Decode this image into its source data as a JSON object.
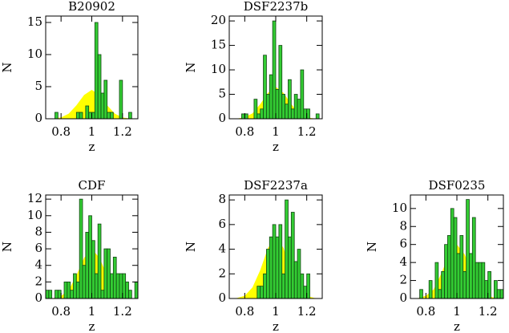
{
  "chart_data": [
    {
      "type": "histogram",
      "title": "B20902",
      "xlabel": "z",
      "ylabel": "N",
      "bins": [
        0.7,
        0.72,
        0.74,
        0.76,
        0.78,
        0.8,
        0.82,
        0.84,
        0.86,
        0.88,
        0.9,
        0.92,
        0.94,
        0.96,
        0.98,
        1.0,
        1.02,
        1.04,
        1.06,
        1.08,
        1.1,
        1.12,
        1.14,
        1.16,
        1.18,
        1.2,
        1.22,
        1.24,
        1.26,
        1.28,
        1.3
      ],
      "values": [
        0,
        0,
        0,
        1,
        0,
        0,
        0,
        0,
        0,
        0,
        1,
        1,
        0,
        2,
        1,
        1,
        15,
        10,
        4,
        6,
        1,
        1,
        0,
        0,
        6,
        0,
        0,
        1,
        0,
        0
      ],
      "color": "#33cc33",
      "overlay": {
        "color": "#ffff00",
        "x": [
          0.7,
          0.75,
          0.8,
          0.85,
          0.9,
          0.95,
          1.0,
          1.05,
          1.1,
          1.15,
          1.2,
          1.25,
          1.3
        ],
        "values": [
          0,
          0.03,
          0.2,
          0.8,
          2.1,
          3.7,
          4.5,
          3.7,
          2.1,
          0.8,
          0.2,
          0.03,
          0
        ]
      },
      "xlim": [
        0.7,
        1.3
      ],
      "xticks": [
        0.8,
        1,
        1.2
      ],
      "ylim": [
        0,
        16
      ],
      "yticks": [
        0,
        5,
        10,
        15
      ]
    },
    {
      "type": "histogram",
      "title": "DSF2237b",
      "xlabel": "z",
      "ylabel": "N",
      "bins": [
        0.7,
        0.72,
        0.74,
        0.76,
        0.78,
        0.8,
        0.82,
        0.84,
        0.86,
        0.88,
        0.9,
        0.92,
        0.94,
        0.96,
        0.98,
        1.0,
        1.02,
        1.04,
        1.06,
        1.08,
        1.1,
        1.12,
        1.14,
        1.16,
        1.18,
        1.2,
        1.22,
        1.24,
        1.26,
        1.28,
        1.3
      ],
      "values": [
        0,
        0,
        0,
        0,
        1,
        1,
        0,
        0,
        4,
        1,
        2,
        13,
        5,
        9,
        20,
        6,
        15,
        5,
        3,
        8,
        2,
        5,
        4,
        10,
        2,
        2,
        0,
        0,
        1,
        0
      ],
      "color": "#33cc33",
      "overlay": {
        "color": "#ffff00",
        "x": [
          0.7,
          0.75,
          0.8,
          0.85,
          0.9,
          0.95,
          1.0,
          1.05,
          1.1,
          1.15,
          1.2,
          1.25,
          1.3
        ],
        "values": [
          0,
          0.05,
          0.3,
          1.1,
          3,
          5.3,
          6.5,
          5.3,
          3,
          1.1,
          0.3,
          0.05,
          0
        ]
      },
      "xlim": [
        0.7,
        1.3
      ],
      "xticks": [
        0.8,
        1,
        1.2
      ],
      "ylim": [
        0,
        21
      ],
      "yticks": [
        0,
        5,
        10,
        15,
        20
      ]
    },
    {
      "type": "histogram",
      "title": "CDF",
      "xlabel": "z",
      "ylabel": "N",
      "bins": [
        0.7,
        0.72,
        0.74,
        0.76,
        0.78,
        0.8,
        0.82,
        0.84,
        0.86,
        0.88,
        0.9,
        0.92,
        0.94,
        0.96,
        0.98,
        1.0,
        1.02,
        1.04,
        1.06,
        1.08,
        1.1,
        1.12,
        1.14,
        1.16,
        1.18,
        1.2,
        1.22,
        1.24,
        1.26,
        1.28,
        1.3
      ],
      "values": [
        1,
        1,
        0,
        1,
        1,
        0,
        2,
        2,
        1,
        3,
        2,
        12,
        4,
        8,
        10,
        7,
        3,
        9,
        1,
        6,
        6,
        3,
        5,
        3,
        3,
        3,
        2,
        1,
        0,
        2
      ],
      "color": "#33cc33",
      "overlay": {
        "color": "#ffff00",
        "x": [
          0.7,
          0.75,
          0.8,
          0.85,
          0.9,
          0.95,
          1.0,
          1.05,
          1.1,
          1.15,
          1.2,
          1.25,
          1.3
        ],
        "values": [
          0,
          0.05,
          0.3,
          1,
          2.8,
          4.9,
          6,
          4.9,
          2.8,
          1,
          0.3,
          0.05,
          0
        ]
      },
      "xlim": [
        0.7,
        1.3
      ],
      "xticks": [
        0.8,
        1,
        1.2
      ],
      "ylim": [
        0,
        12.5
      ],
      "yticks": [
        0,
        2,
        4,
        6,
        8,
        10,
        12
      ]
    },
    {
      "type": "histogram",
      "title": "DSF2237a",
      "xlabel": "z",
      "ylabel": "N",
      "bins": [
        0.7,
        0.72,
        0.74,
        0.76,
        0.78,
        0.8,
        0.82,
        0.84,
        0.86,
        0.88,
        0.9,
        0.92,
        0.94,
        0.96,
        0.98,
        1.0,
        1.02,
        1.04,
        1.06,
        1.08,
        1.1,
        1.12,
        1.14,
        1.16,
        1.18,
        1.2,
        1.22,
        1.24,
        1.26,
        1.28,
        1.3
      ],
      "values": [
        0,
        0,
        0,
        0,
        0,
        0,
        0,
        0,
        0,
        1,
        1,
        2,
        4,
        5,
        6,
        5,
        6,
        2,
        8,
        5,
        7,
        3,
        4,
        2,
        1,
        2,
        0,
        0,
        0,
        0
      ],
      "color": "#33cc33",
      "overlay": {
        "color": "#ffff00",
        "x": [
          0.7,
          0.75,
          0.8,
          0.85,
          0.9,
          0.95,
          1.0,
          1.05,
          1.1,
          1.15,
          1.2,
          1.25,
          1.3
        ],
        "values": [
          0,
          0.04,
          0.22,
          0.9,
          2.3,
          4.1,
          5,
          4.1,
          2.3,
          0.9,
          0.22,
          0.04,
          0
        ]
      },
      "xlim": [
        0.7,
        1.3
      ],
      "xticks": [
        0.8,
        1,
        1.2
      ],
      "ylim": [
        0,
        8.4
      ],
      "yticks": [
        0,
        2,
        4,
        6,
        8
      ]
    },
    {
      "type": "histogram",
      "title": "DSF0235",
      "xlabel": "z",
      "ylabel": "N",
      "bins": [
        0.7,
        0.72,
        0.74,
        0.76,
        0.78,
        0.8,
        0.82,
        0.84,
        0.86,
        0.88,
        0.9,
        0.92,
        0.94,
        0.96,
        0.98,
        1.0,
        1.02,
        1.04,
        1.06,
        1.08,
        1.1,
        1.12,
        1.14,
        1.16,
        1.18,
        1.2,
        1.22,
        1.24,
        1.26,
        1.28,
        1.3
      ],
      "values": [
        0,
        0,
        0,
        1,
        0,
        0,
        2,
        0,
        4,
        1,
        3,
        6,
        7,
        10,
        9,
        5,
        7,
        3,
        11,
        5,
        9,
        4,
        4,
        4,
        2,
        3,
        0,
        2,
        1,
        1
      ],
      "color": "#33cc33",
      "overlay": {
        "color": "#ffff00",
        "x": [
          0.7,
          0.75,
          0.8,
          0.85,
          0.9,
          0.95,
          1.0,
          1.05,
          1.1,
          1.15,
          1.2,
          1.25,
          1.3
        ],
        "values": [
          0,
          0.05,
          0.3,
          1,
          2.8,
          4.9,
          6,
          4.9,
          2.8,
          1,
          0.3,
          0.05,
          0
        ]
      },
      "xlim": [
        0.7,
        1.3
      ],
      "xticks": [
        0.8,
        1,
        1.2
      ],
      "ylim": [
        0,
        11.5
      ],
      "yticks": [
        0,
        2,
        4,
        6,
        8,
        10
      ]
    }
  ]
}
